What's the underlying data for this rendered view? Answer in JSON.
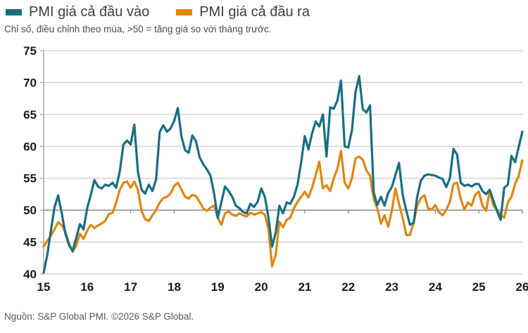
{
  "legend": [
    {
      "label": "PMI giá cả đầu vào",
      "color": "#186E85"
    },
    {
      "label": "PMI giá cả đầu ra",
      "color": "#E2860F"
    }
  ],
  "subtitle": "Chỉ số, điều chỉnh theo mùa, >50 = tăng giá so với tháng trước.",
  "source": "Nguồn: S&P Global PMI. ©2026 S&P Global.",
  "colors": {
    "gridline": "#cccccc",
    "fifty_line": "#8a8a8a",
    "axis_line": "#a6a6a6",
    "tick_label": "#1a1a1a"
  },
  "chart_data": {
    "type": "line",
    "title": "",
    "xlabel": "",
    "ylabel": "",
    "x_unit": "month",
    "x_start": "2015-01",
    "x_end": "2026-01",
    "x_tick_labels": [
      "15",
      "16",
      "17",
      "18",
      "19",
      "20",
      "21",
      "22",
      "23",
      "24",
      "25",
      "26"
    ],
    "y_ticks": [
      40,
      45,
      50,
      55,
      60,
      65,
      70,
      75
    ],
    "ylim": [
      40,
      75
    ],
    "grid": "horizontal",
    "legend_position": "top-left",
    "series": [
      {
        "name": "PMI giá cả đầu vào",
        "color": "#186E85",
        "values": [
          40.2,
          43.0,
          46.8,
          50.5,
          52.3,
          49.5,
          46.3,
          44.5,
          43.6,
          45.7,
          47.8,
          47.0,
          50.3,
          52.4,
          54.7,
          53.7,
          53.4,
          54.0,
          53.8,
          54.3,
          53.5,
          56.1,
          60.3,
          60.9,
          60.3,
          63.4,
          56.0,
          53.2,
          52.6,
          54.0,
          53.0,
          54.8,
          62.2,
          63.3,
          62.3,
          62.8,
          64.0,
          66.0,
          61.5,
          59.4,
          59.0,
          61.7,
          60.8,
          58.3,
          57.2,
          56.4,
          55.4,
          52.6,
          48.8,
          51.2,
          53.7,
          53.0,
          52.1,
          50.7,
          50.3,
          49.7,
          49.5,
          51.0,
          50.5,
          51.3,
          53.4,
          52.1,
          48.8,
          44.3,
          46.5,
          50.7,
          49.5,
          51.2,
          51.0,
          52.1,
          54.0,
          57.5,
          61.6,
          59.5,
          62.0,
          63.9,
          63.1,
          65.0,
          58.4,
          66.1,
          65.9,
          67.2,
          70.3,
          60.0,
          59.8,
          62.5,
          68.5,
          71.0,
          65.8,
          65.3,
          66.4,
          52.8,
          50.8,
          52.1,
          50.7,
          52.7,
          53.6,
          55.5,
          57.4,
          52.4,
          49.9,
          47.7,
          48.0,
          52.1,
          54.6,
          55.4,
          55.6,
          55.5,
          55.4,
          55.1,
          54.9,
          53.6,
          55.0,
          59.6,
          58.7,
          54.3,
          53.8,
          54.0,
          53.7,
          54.1,
          54.1,
          53.0,
          52.5,
          53.2,
          51.5,
          49.9,
          48.5,
          53.5,
          54.0,
          58.5,
          57.5,
          59.9,
          62.3
        ]
      },
      {
        "name": "PMI giá cả đầu ra",
        "color": "#E2860F",
        "values": [
          44.3,
          45.2,
          46.0,
          47.0,
          48.1,
          47.6,
          46.6,
          44.8,
          43.5,
          44.5,
          46.3,
          45.5,
          46.8,
          47.7,
          47.2,
          47.6,
          47.9,
          48.3,
          49.4,
          49.6,
          51.2,
          53.2,
          54.3,
          54.5,
          53.5,
          54.5,
          53.2,
          49.9,
          48.6,
          48.3,
          49.2,
          50.0,
          51.2,
          51.9,
          52.1,
          52.6,
          53.8,
          54.3,
          53.2,
          52.1,
          51.8,
          52.4,
          52.2,
          51.3,
          50.3,
          49.9,
          50.4,
          50.7,
          48.8,
          47.7,
          49.5,
          49.8,
          49.3,
          49.1,
          49.5,
          49.2,
          49.0,
          49.6,
          49.3,
          49.5,
          49.7,
          49.3,
          47.0,
          41.2,
          43.0,
          48.2,
          47.3,
          48.5,
          48.8,
          50.3,
          51.3,
          52.1,
          52.9,
          52.0,
          53.5,
          55.5,
          57.6,
          53.4,
          53.9,
          53.0,
          55.0,
          56.5,
          59.3,
          54.3,
          53.4,
          55.0,
          58.1,
          58.4,
          57.9,
          56.2,
          55.4,
          51.8,
          50.3,
          47.9,
          49.2,
          47.4,
          49.9,
          53.4,
          51.0,
          48.8,
          46.1,
          46.1,
          48.0,
          50.7,
          51.9,
          52.3,
          50.3,
          50.1,
          50.8,
          49.7,
          49.2,
          50.0,
          51.3,
          54.1,
          54.3,
          51.8,
          50.1,
          51.2,
          50.7,
          52.4,
          52.9,
          50.7,
          49.9,
          53.0,
          50.7,
          50.1,
          49.2,
          48.8,
          51.2,
          52.1,
          54.1,
          55.4,
          57.8
        ]
      }
    ]
  }
}
